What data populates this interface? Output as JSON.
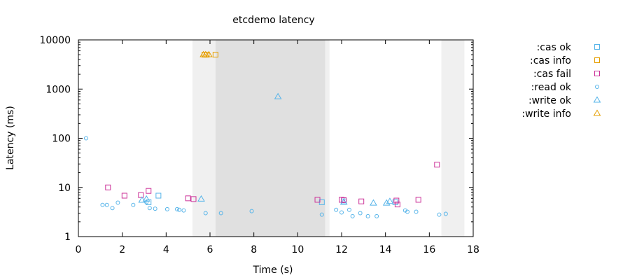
{
  "chart_data": {
    "type": "scatter",
    "title": "etcdemo latency",
    "xlabel": "Time (s)",
    "ylabel": "Latency (ms)",
    "xlim": [
      0,
      18
    ],
    "ylim": [
      1,
      10000
    ],
    "yscale": "log",
    "grid": false,
    "legend_placement": "right",
    "x_ticks": [
      0,
      2,
      4,
      6,
      8,
      10,
      12,
      14,
      16,
      18
    ],
    "x_tick_labels": [
      "0",
      "2",
      "4",
      "6",
      "8",
      "10",
      "12",
      "14",
      "16",
      "18"
    ],
    "y_ticks": [
      1,
      10,
      100,
      1000,
      10000
    ],
    "y_tick_labels": [
      "1",
      "10",
      "100",
      "1000",
      "10000"
    ],
    "bands": [
      {
        "x0": 5.2,
        "x1": 6.25,
        "color": "#f0f0f0"
      },
      {
        "x0": 6.25,
        "x1": 11.25,
        "color": "#e0e0e0"
      },
      {
        "x0": 11.25,
        "x1": 11.45,
        "color": "#f0f0f0"
      },
      {
        "x0": 16.55,
        "x1": 17.6,
        "color": "#f0f0f0"
      }
    ],
    "series": [
      {
        "name": ":cas ok",
        "marker": "square",
        "color": "#56b4e9",
        "points": [
          [
            3.2,
            5.0
          ],
          [
            3.65,
            6.8
          ],
          [
            11.1,
            5.0
          ],
          [
            12.1,
            5.2
          ],
          [
            14.45,
            5.0
          ]
        ]
      },
      {
        "name": ":cas info",
        "marker": "square",
        "color": "#e69f00",
        "points": [
          [
            5.75,
            5000
          ],
          [
            5.85,
            5000
          ],
          [
            6.25,
            5000
          ]
        ]
      },
      {
        "name": ":cas fail",
        "marker": "square",
        "color": "#cc3399",
        "points": [
          [
            1.35,
            10.0
          ],
          [
            2.1,
            6.8
          ],
          [
            2.85,
            7.0
          ],
          [
            3.2,
            8.5
          ],
          [
            5.0,
            6.0
          ],
          [
            5.25,
            5.8
          ],
          [
            10.9,
            5.6
          ],
          [
            12.0,
            5.6
          ],
          [
            12.1,
            5.5
          ],
          [
            12.9,
            5.2
          ],
          [
            14.5,
            5.4
          ],
          [
            14.55,
            4.5
          ],
          [
            15.5,
            5.6
          ],
          [
            16.35,
            29.0
          ]
        ]
      },
      {
        "name": ":read ok",
        "marker": "circle",
        "color": "#56b4e9",
        "points": [
          [
            0.35,
            100
          ],
          [
            1.1,
            4.4
          ],
          [
            1.3,
            4.4
          ],
          [
            1.55,
            3.8
          ],
          [
            1.8,
            4.9
          ],
          [
            2.5,
            4.4
          ],
          [
            3.1,
            5.0
          ],
          [
            3.25,
            3.8
          ],
          [
            3.5,
            3.7
          ],
          [
            4.05,
            3.6
          ],
          [
            4.5,
            3.6
          ],
          [
            4.6,
            3.5
          ],
          [
            4.8,
            3.4
          ],
          [
            5.8,
            3.0
          ],
          [
            6.5,
            3.0
          ],
          [
            7.9,
            3.3
          ],
          [
            11.1,
            2.8
          ],
          [
            11.75,
            3.5
          ],
          [
            12.0,
            3.1
          ],
          [
            12.35,
            3.5
          ],
          [
            12.5,
            2.6
          ],
          [
            12.85,
            3.0
          ],
          [
            13.2,
            2.6
          ],
          [
            13.6,
            2.6
          ],
          [
            14.9,
            3.4
          ],
          [
            15.0,
            3.2
          ],
          [
            15.4,
            3.2
          ],
          [
            16.45,
            2.8
          ],
          [
            16.75,
            2.9
          ]
        ]
      },
      {
        "name": ":write ok",
        "marker": "triangle",
        "color": "#56b4e9",
        "points": [
          [
            2.9,
            5.5
          ],
          [
            3.1,
            5.8
          ],
          [
            5.6,
            5.8
          ],
          [
            9.1,
            700
          ],
          [
            12.1,
            5.0
          ],
          [
            13.45,
            4.8
          ],
          [
            14.05,
            4.8
          ],
          [
            14.2,
            5.2
          ]
        ]
      },
      {
        "name": ":write info",
        "marker": "triangle",
        "color": "#e69f00",
        "points": [
          [
            5.7,
            5000
          ],
          [
            5.8,
            5000
          ],
          [
            5.95,
            5000
          ]
        ]
      }
    ]
  }
}
